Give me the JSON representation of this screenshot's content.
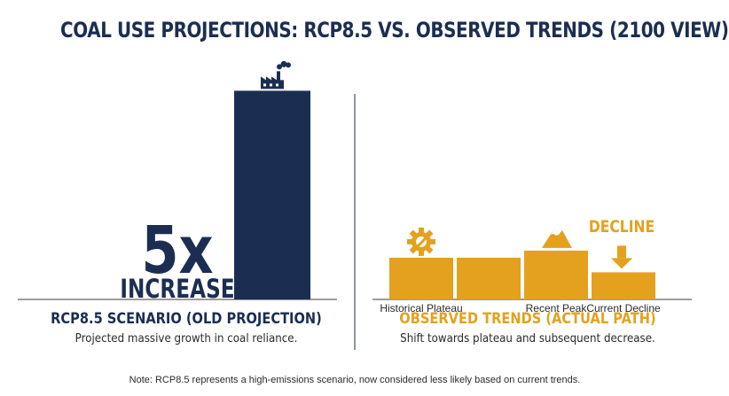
{
  "title": "COAL USE PROJECTIONS: RCP8.5 VS. OBSERVED TRENDS (2100 VIEW)",
  "left_panel": {
    "multiplier": "5x",
    "multiplier_label": "INCREASE",
    "heading": "RCP8.5 SCENARIO (OLD PROJECTION)",
    "subtitle": "Projected massive growth in coal reliance."
  },
  "right_panel": {
    "heading": "OBSERVED TRENDS (ACTUAL PATH)",
    "subtitle": "Shift towards plateau and subsequent decrease.",
    "decline_label": "DECLINE"
  },
  "note": "Note: RCP8.5 represents a high-emissions scenario, now considered less likely based on current trends.",
  "colors": {
    "navy": "#1b2e52",
    "gold": "#e3a11d",
    "divider": "#1b2e52",
    "axis": "#3a3a3a"
  },
  "icons": {
    "rcp_bar": "factory-icon",
    "historical_plateau": "gear-wrench-icon",
    "recent_peak": "mountain-icon",
    "current_decline": "down-arrow-icon"
  },
  "chart_data": [
    {
      "type": "bar",
      "categories": [
        ""
      ],
      "values": [
        5
      ],
      "annotation": "5x INCREASE",
      "ylim": [
        0,
        5.2
      ]
    },
    {
      "type": "bar",
      "categories": [
        "Historical Plateau",
        "",
        "Recent Peak",
        "Current Decline"
      ],
      "values": [
        1,
        1,
        1.17,
        0.65
      ],
      "ylim": [
        0,
        5.2
      ]
    }
  ]
}
